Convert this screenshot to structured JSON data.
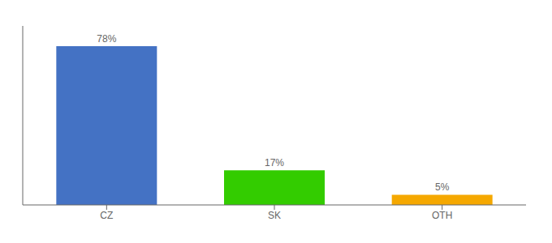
{
  "chart_data": {
    "type": "bar",
    "categories": [
      "CZ",
      "SK",
      "OTH"
    ],
    "values": [
      78,
      17,
      5
    ],
    "value_labels": [
      "78%",
      "17%",
      "5%"
    ],
    "data_labels": true,
    "colors": [
      "#4472c4",
      "#33cc00",
      "#f5a800"
    ],
    "ylim": [
      0,
      88
    ],
    "tick_labels": "x"
  }
}
